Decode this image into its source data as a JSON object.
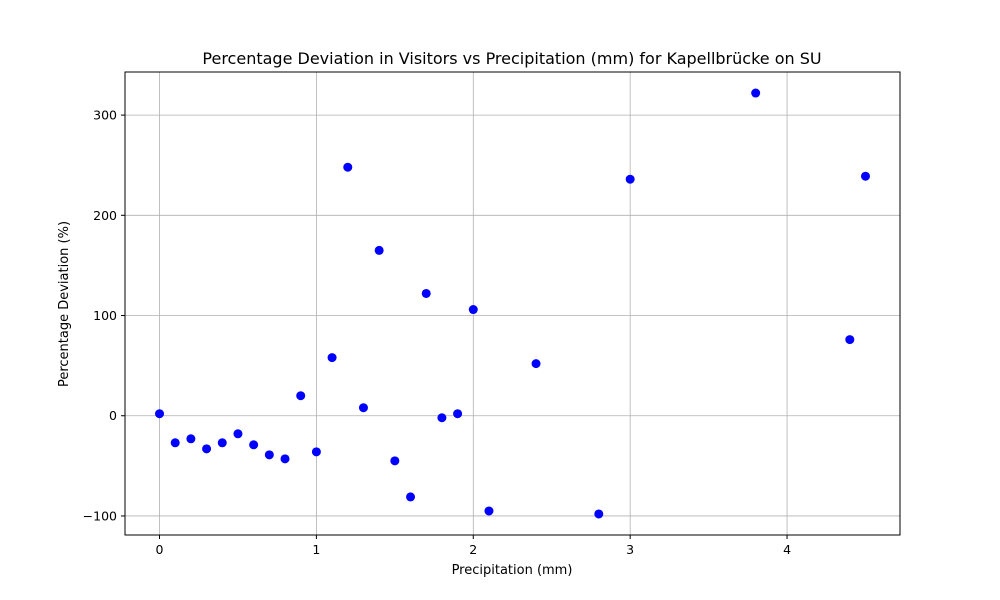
{
  "chart_data": {
    "type": "scatter",
    "title": "Percentage Deviation in Visitors vs Precipitation (mm) for Kapellbrücke on SU",
    "xlabel": "Precipitation (mm)",
    "ylabel": "Percentage Deviation (%)",
    "xlim": [
      -0.22,
      4.72
    ],
    "ylim": [
      -119,
      343
    ],
    "xticks": [
      0,
      1,
      2,
      3,
      4
    ],
    "xtick_labels": [
      "0",
      "1",
      "2",
      "3",
      "4"
    ],
    "yticks": [
      -100,
      0,
      100,
      200,
      300
    ],
    "ytick_labels": [
      "−100",
      "0",
      "100",
      "200",
      "300"
    ],
    "grid": true,
    "marker_color": "#0000ff",
    "points": [
      {
        "x": 0.0,
        "y": 2
      },
      {
        "x": 0.1,
        "y": -27
      },
      {
        "x": 0.2,
        "y": -23
      },
      {
        "x": 0.3,
        "y": -33
      },
      {
        "x": 0.4,
        "y": -27
      },
      {
        "x": 0.5,
        "y": -18
      },
      {
        "x": 0.6,
        "y": -29
      },
      {
        "x": 0.7,
        "y": -39
      },
      {
        "x": 0.8,
        "y": -43
      },
      {
        "x": 0.9,
        "y": 20
      },
      {
        "x": 1.0,
        "y": -36
      },
      {
        "x": 1.1,
        "y": 58
      },
      {
        "x": 1.2,
        "y": 248
      },
      {
        "x": 1.3,
        "y": 8
      },
      {
        "x": 1.4,
        "y": 165
      },
      {
        "x": 1.5,
        "y": -45
      },
      {
        "x": 1.6,
        "y": -81
      },
      {
        "x": 1.7,
        "y": 122
      },
      {
        "x": 1.8,
        "y": -2
      },
      {
        "x": 1.9,
        "y": 2
      },
      {
        "x": 2.0,
        "y": 106
      },
      {
        "x": 2.1,
        "y": -95
      },
      {
        "x": 2.4,
        "y": 52
      },
      {
        "x": 2.8,
        "y": -98
      },
      {
        "x": 3.0,
        "y": 236
      },
      {
        "x": 3.8,
        "y": 322
      },
      {
        "x": 4.4,
        "y": 76
      },
      {
        "x": 4.5,
        "y": 239
      }
    ]
  }
}
